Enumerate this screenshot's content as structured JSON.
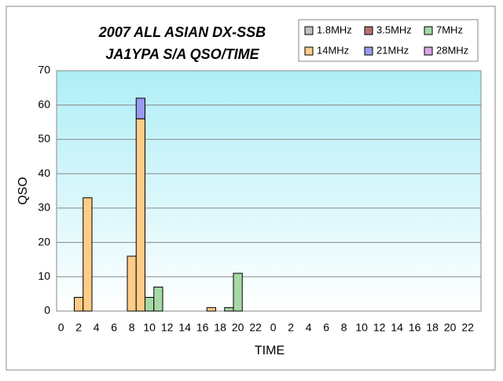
{
  "chart_data": {
    "type": "bar",
    "stacked": true,
    "title": [
      "2007 ALL ASIAN DX-SSB",
      "JA1YPA S/A  QSO/TIME"
    ],
    "x_label": "TIME",
    "y_label": "QSO",
    "categories": [
      "0",
      null,
      "2",
      null,
      "4",
      null,
      "6",
      null,
      "8",
      null,
      "10",
      null,
      "12",
      null,
      "14",
      null,
      "16",
      null,
      "18",
      null,
      "20",
      null,
      "22",
      null,
      "0",
      null,
      "2",
      null,
      "4",
      null,
      "6",
      null,
      "8",
      null,
      "10",
      null,
      "12",
      null,
      "14",
      null,
      "16",
      null,
      "18",
      null,
      "20",
      null,
      "22",
      null
    ],
    "series": [
      {
        "name": "1.8MHz",
        "color": "#c0c0c0",
        "values": [
          0,
          0,
          0,
          0,
          0,
          0,
          0,
          0,
          0,
          0,
          0,
          0,
          0,
          0,
          0,
          0,
          0,
          0,
          0,
          0,
          0,
          0,
          0,
          0,
          0,
          0,
          0,
          0,
          0,
          0,
          0,
          0,
          0,
          0,
          0,
          0,
          0,
          0,
          0,
          0,
          0,
          0,
          0,
          0,
          0,
          0,
          0,
          0
        ]
      },
      {
        "name": "3.5MHz",
        "color": "#b87070",
        "values": [
          0,
          0,
          0,
          0,
          0,
          0,
          0,
          0,
          0,
          0,
          0,
          0,
          0,
          0,
          0,
          0,
          0,
          0,
          0,
          0,
          0,
          0,
          0,
          0,
          0,
          0,
          0,
          0,
          0,
          0,
          0,
          0,
          0,
          0,
          0,
          0,
          0,
          0,
          0,
          0,
          0,
          0,
          0,
          0,
          0,
          0,
          0,
          0
        ]
      },
      {
        "name": "7MHz",
        "color": "#a6d9a6",
        "values": [
          0,
          0,
          0,
          0,
          0,
          0,
          0,
          0,
          0,
          0,
          4,
          7,
          0,
          0,
          0,
          0,
          0,
          0,
          0,
          1,
          11,
          0,
          0,
          0,
          0,
          0,
          0,
          0,
          0,
          0,
          0,
          0,
          0,
          0,
          0,
          0,
          0,
          0,
          0,
          0,
          0,
          0,
          0,
          0,
          0,
          0,
          0,
          0
        ]
      },
      {
        "name": "14MHz",
        "color": "#ffcc88",
        "values": [
          0,
          0,
          4,
          33,
          0,
          0,
          0,
          0,
          16,
          56,
          0,
          0,
          0,
          0,
          0,
          0,
          0,
          1,
          0,
          0,
          0,
          0,
          0,
          0,
          0,
          0,
          0,
          0,
          0,
          0,
          0,
          0,
          0,
          0,
          0,
          0,
          0,
          0,
          0,
          0,
          0,
          0,
          0,
          0,
          0,
          0,
          0,
          0
        ]
      },
      {
        "name": "21MHz",
        "color": "#9999ee",
        "values": [
          0,
          0,
          0,
          0,
          0,
          0,
          0,
          0,
          0,
          6,
          0,
          0,
          0,
          0,
          0,
          0,
          0,
          0,
          0,
          0,
          0,
          0,
          0,
          0,
          0,
          0,
          0,
          0,
          0,
          0,
          0,
          0,
          0,
          0,
          0,
          0,
          0,
          0,
          0,
          0,
          0,
          0,
          0,
          0,
          0,
          0,
          0,
          0
        ]
      },
      {
        "name": "28MHz",
        "color": "#d9a6e6",
        "values": [
          0,
          0,
          0,
          0,
          0,
          0,
          0,
          0,
          0,
          0,
          0,
          0,
          0,
          0,
          0,
          0,
          0,
          0,
          0,
          0,
          0,
          0,
          0,
          0,
          0,
          0,
          0,
          0,
          0,
          0,
          0,
          0,
          0,
          0,
          0,
          0,
          0,
          0,
          0,
          0,
          0,
          0,
          0,
          0,
          0,
          0,
          0,
          0
        ]
      }
    ],
    "ylim": [
      0,
      70
    ],
    "yticks": [
      0,
      10,
      20,
      30,
      40,
      50,
      60,
      70
    ],
    "grid": true
  }
}
